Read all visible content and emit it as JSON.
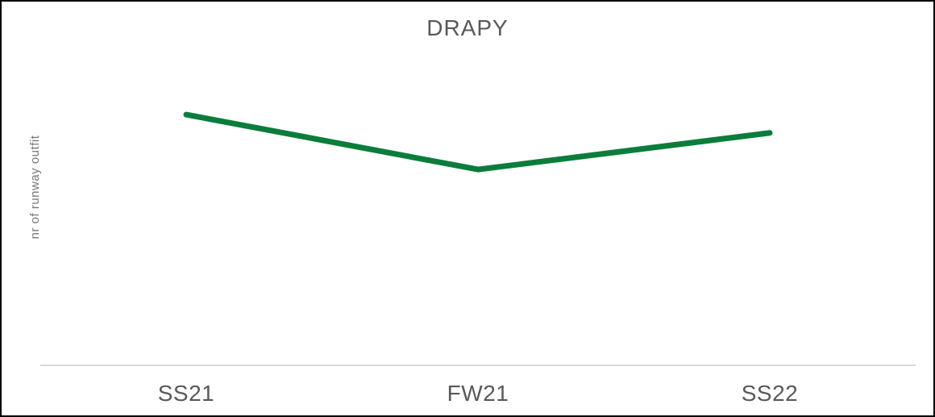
{
  "chart_data": {
    "type": "line",
    "title": "DRAPY",
    "xlabel": "",
    "ylabel": "nr of runway outfit",
    "categories": [
      "SS21",
      "FW21",
      "SS22"
    ],
    "series": [
      {
        "values": [
          9.6,
          7.5,
          8.9
        ]
      }
    ],
    "ylim": [
      0,
      13
    ],
    "grid": false,
    "legend": "none",
    "colors": {
      "line": "#0a7d3b",
      "axis": "#d9d9d9",
      "frame": "#000000"
    }
  }
}
